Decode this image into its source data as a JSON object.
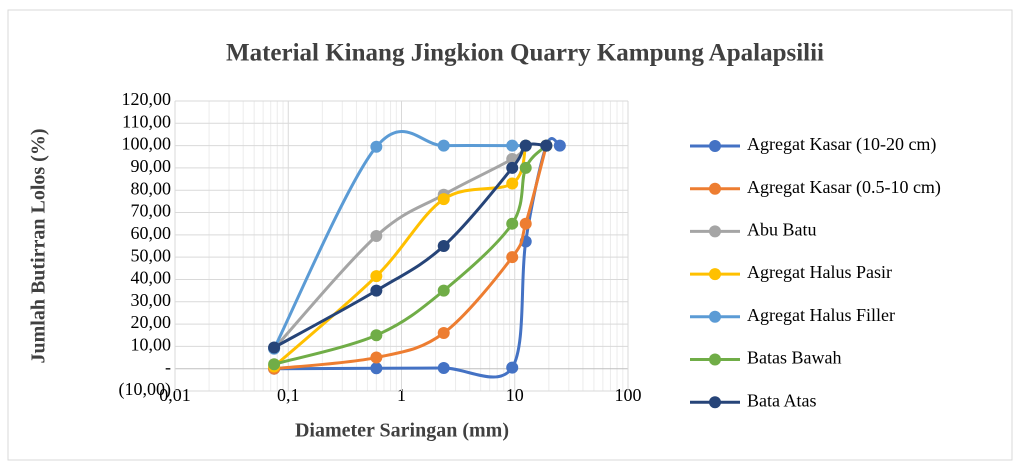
{
  "chart_data": {
    "type": "line",
    "title": "Material Kinang Jingkion Quarry Kampung Apalapsilii",
    "x_label": "Diameter Saringan (mm)",
    "y_label": "Jumlah Butirran Lolos (%)",
    "xscale": "log",
    "xlim": [
      0.01,
      100
    ],
    "xticks": [
      {
        "value": 0.01,
        "label": "0,01"
      },
      {
        "value": 0.1,
        "label": "0,1"
      },
      1,
      10,
      100
    ],
    "ylim": [
      -10,
      120
    ],
    "yticks": [
      {
        "value": -10,
        "label": "(10,00)"
      },
      {
        "value": 0,
        "label": "-"
      },
      {
        "value": 10,
        "label": "10,00"
      },
      {
        "value": 20,
        "label": "20,00"
      },
      {
        "value": 30,
        "label": "30,00"
      },
      {
        "value": 40,
        "label": "40,00"
      },
      {
        "value": 50,
        "label": "50,00"
      },
      {
        "value": 60,
        "label": "60,00"
      },
      {
        "value": 70,
        "label": "70,00"
      },
      {
        "value": 80,
        "label": "80,00"
      },
      {
        "value": 90,
        "label": "90,00"
      },
      {
        "value": 100,
        "label": "100,00"
      },
      {
        "value": 110,
        "label": "110,00"
      },
      {
        "value": 120,
        "label": "120,00"
      }
    ],
    "grid": true,
    "legend": "right",
    "series": [
      {
        "name": "Agregat Kasar (10-20 cm)",
        "color": "#4472c4",
        "x": [
          0.075,
          0.6,
          2.36,
          9.5,
          12.5,
          19,
          25
        ],
        "values": [
          0,
          0.2,
          0.3,
          0.5,
          57,
          100,
          100
        ]
      },
      {
        "name": "Agregat Kasar (0.5-10 cm)",
        "color": "#ed7d31",
        "x": [
          0.075,
          0.6,
          2.36,
          9.5,
          12.5,
          19
        ],
        "values": [
          0,
          5,
          16,
          50,
          65,
          100
        ]
      },
      {
        "name": "Abu Batu",
        "color": "#a5a5a5",
        "x": [
          0.075,
          0.6,
          2.36,
          9.5,
          12.5
        ],
        "values": [
          9,
          59.5,
          78,
          94,
          100
        ]
      },
      {
        "name": "Agregat Halus Pasir",
        "color": "#ffc000",
        "x": [
          0.075,
          0.6,
          2.36,
          9.5,
          12.5
        ],
        "values": [
          1,
          41.5,
          76,
          83,
          100
        ]
      },
      {
        "name": "Agregat Halus Filler",
        "color": "#5b9bd5",
        "x": [
          0.075,
          0.6,
          2.36,
          9.5,
          12.5
        ],
        "values": [
          9,
          99.5,
          100,
          100,
          100
        ]
      },
      {
        "name": "Batas Bawah",
        "color": "#70ad47",
        "x": [
          0.075,
          0.6,
          2.36,
          9.5,
          12.5,
          19
        ],
        "values": [
          2,
          15,
          35,
          65,
          90,
          100
        ]
      },
      {
        "name": "Bata Atas",
        "color": "#264478",
        "x": [
          0.075,
          0.6,
          2.36,
          9.5,
          12.5,
          19
        ],
        "values": [
          9.5,
          35,
          55,
          90,
          100,
          100
        ]
      }
    ]
  }
}
